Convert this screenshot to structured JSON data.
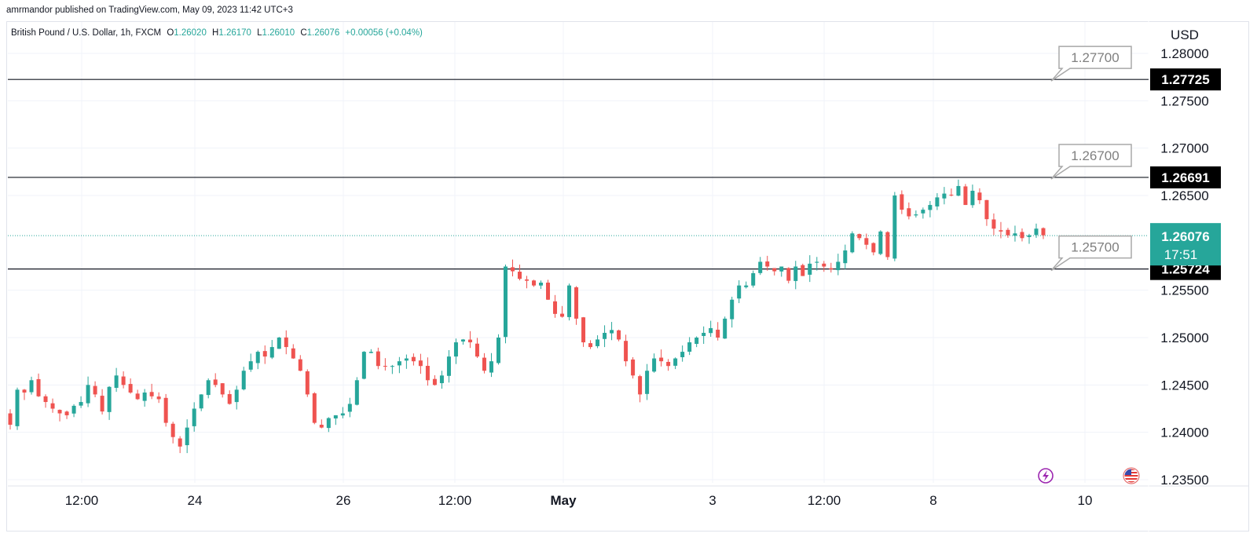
{
  "header": {
    "published": "amrmandor published on TradingView.com, May 09, 2023 11:42 UTC+3"
  },
  "legend": {
    "symbol": "British Pound / U.S. Dollar, 1h, FXCM",
    "open_label": "O",
    "open": "1.26020",
    "high_label": "H",
    "high": "1.26170",
    "low_label": "L",
    "low": "1.26010",
    "close_label": "C",
    "close": "1.26076",
    "change": "+0.00056 (+0.04%)"
  },
  "currency": "USD",
  "colors": {
    "up": "#26a69a",
    "down": "#ef5350",
    "line": "#131722",
    "current_price_bg": "#26a69a",
    "callout_border": "#a8a8a8",
    "callout_text": "#808080",
    "icon_lightning": "#9c27b0"
  },
  "icons": [
    "lightning-icon",
    "us-flag-icon"
  ],
  "current_price": {
    "value": "1.26076",
    "countdown": "17:51",
    "y": 1.26076
  },
  "chart_data": {
    "type": "candlestick",
    "title": "British Pound / U.S. Dollar, 1h, FXCM",
    "x_tick_labels": [
      "12:00",
      "24",
      "26",
      "12:00",
      "May",
      "3",
      "12:00",
      "8",
      "10"
    ],
    "y_tick_labels": [
      "1.28000",
      "1.27500",
      "1.27000",
      "1.26500",
      "1.25500",
      "1.25000",
      "1.24500",
      "1.24000",
      "1.23500"
    ],
    "ylim": [
      1.235,
      1.2805
    ],
    "horizontal_levels": [
      {
        "value": 1.27725,
        "label": "1.27725",
        "callout": "1.27700"
      },
      {
        "value": 1.26691,
        "label": "1.26691",
        "callout": "1.26700"
      },
      {
        "value": 1.25724,
        "label": "1.25724",
        "callout": "1.25700"
      }
    ],
    "close_path": [
      1.2408,
      1.2445,
      1.2442,
      1.2455,
      1.2438,
      1.2432,
      1.2425,
      1.242,
      1.2418,
      1.2428,
      1.2432,
      1.245,
      1.244,
      1.2422,
      1.2448,
      1.246,
      1.245,
      1.2442,
      1.2435,
      1.2442,
      1.2438,
      1.2435,
      1.241,
      1.2395,
      1.2385,
      1.2405,
      1.2425,
      1.244,
      1.2455,
      1.245,
      1.244,
      1.243,
      1.2445,
      1.2465,
      1.2475,
      1.2485,
      1.248,
      1.249,
      1.25,
      1.249,
      1.2478,
      1.2465,
      1.244,
      1.241,
      1.2405,
      1.2415,
      1.2418,
      1.242,
      1.243,
      1.2455,
      1.2485,
      1.2485,
      1.247,
      1.247,
      1.247,
      1.2475,
      1.2478,
      1.2475,
      1.247,
      1.2455,
      1.245,
      1.246,
      1.248,
      1.2495,
      1.2498,
      1.2495,
      1.248,
      1.2465,
      1.2475,
      1.25,
      1.2575,
      1.257,
      1.2562,
      1.256,
      1.2555,
      1.2558,
      1.254,
      1.2525,
      1.2522,
      1.2555,
      1.252,
      1.2495,
      1.249,
      1.2498,
      1.2505,
      1.2508,
      1.2498,
      1.2475,
      1.246,
      1.244,
      1.2465,
      1.2478,
      1.2475,
      1.247,
      1.2478,
      1.2485,
      1.2495,
      1.25,
      1.2505,
      1.251,
      1.25,
      1.252,
      1.254,
      1.2555,
      1.2555,
      1.2568,
      1.258,
      1.2575,
      1.257,
      1.2575,
      1.256,
      1.2575,
      1.2565,
      1.2578,
      1.258,
      1.2575,
      1.2572,
      1.258,
      1.2592,
      1.261,
      1.2605,
      1.2598,
      1.259,
      1.2612,
      1.2585,
      1.265,
      1.2635,
      1.2628,
      1.263,
      1.2635,
      1.264,
      1.2648,
      1.2652,
      1.265,
      1.266,
      1.264,
      1.2655,
      1.2645,
      1.2625,
      1.2615,
      1.2612,
      1.2608,
      1.261,
      1.2605,
      1.2608,
      1.2615,
      1.2608
    ]
  }
}
